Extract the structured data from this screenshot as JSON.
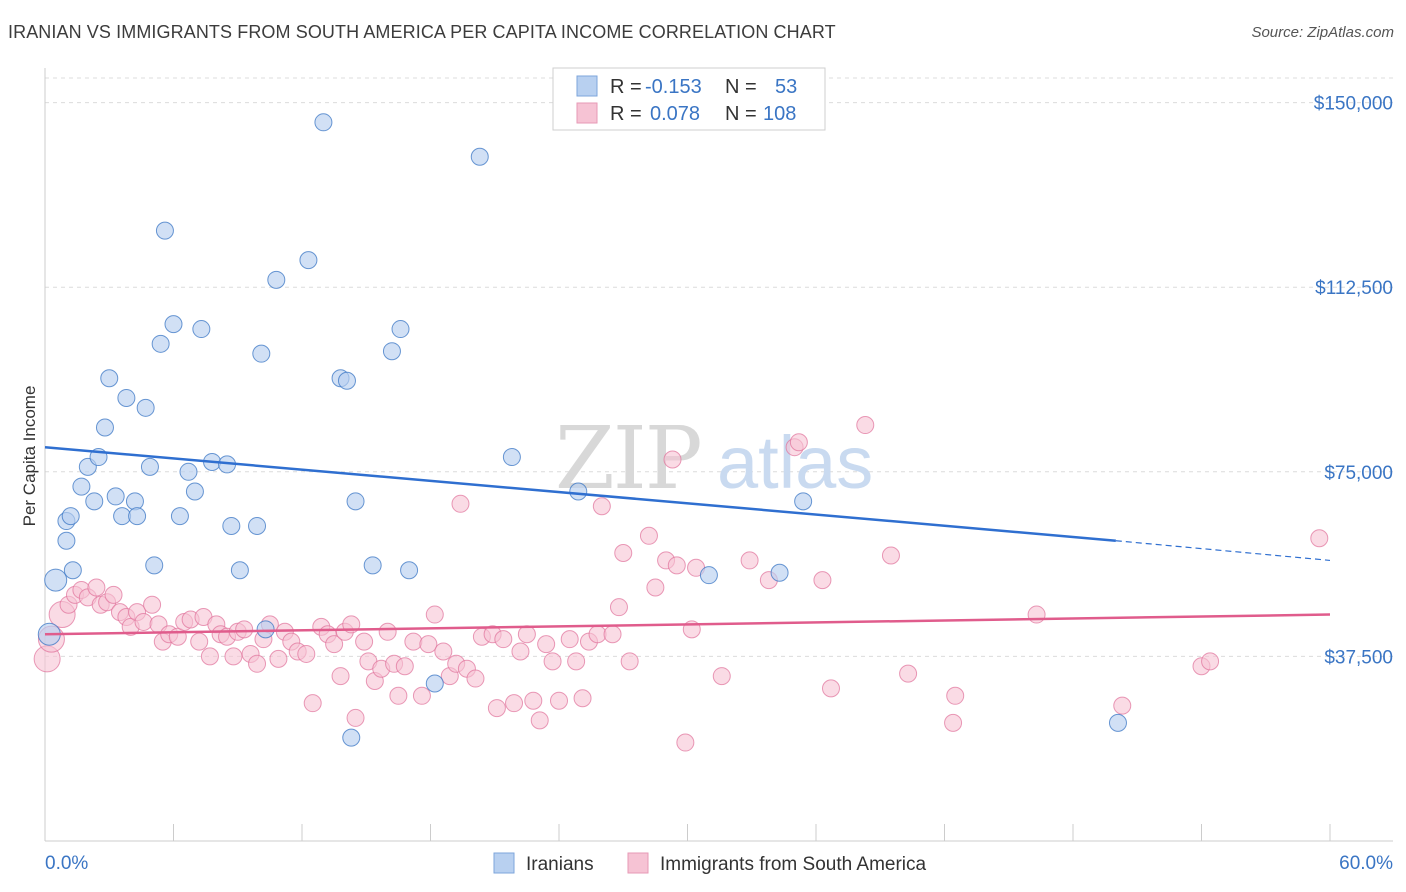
{
  "title": "IRANIAN VS IMMIGRANTS FROM SOUTH AMERICA PER CAPITA INCOME CORRELATION CHART",
  "source": "Source: ZipAtlas.com",
  "watermark": "ZIPatlas",
  "colors": {
    "blue": "#3a75c4",
    "blue_fill": "#b8d0f0",
    "blue_line": "#2f6fd0",
    "pink": "#e0709a",
    "pink_fill": "#f6c3d4",
    "pink_line": "#e05c8c"
  },
  "chart_data": {
    "type": "scatter",
    "title": "IRANIAN VS IMMIGRANTS FROM SOUTH AMERICA PER CAPITA INCOME CORRELATION CHART",
    "xlabel": "",
    "ylabel": "Per Capita Income",
    "xlim": [
      0,
      60
    ],
    "ylim": [
      0,
      155000
    ],
    "x_tick_labels": [
      "0.0%",
      "60.0%"
    ],
    "y_ticks": [
      37500,
      75000,
      112500,
      150000
    ],
    "y_tick_labels": [
      "$37,500",
      "$75,000",
      "$112,500",
      "$150,000"
    ],
    "legend": [
      {
        "name": "Iranians",
        "r_label": "R =",
        "r": "-0.153",
        "n_label": "N =",
        "n": "53"
      },
      {
        "name": "Immigrants from South America",
        "r_label": "R =",
        "r": "0.078",
        "n_label": "N =",
        "n": "108"
      }
    ],
    "series": [
      {
        "name": "Iranians",
        "trend": {
          "x0": 0,
          "y0": 80000,
          "x1": 50,
          "y1": 61000,
          "dash_to": 60,
          "dash_y": 57000
        },
        "points": [
          [
            0.2,
            42000
          ],
          [
            0.5,
            53000
          ],
          [
            1.0,
            61000
          ],
          [
            1.0,
            65000
          ],
          [
            1.2,
            66000
          ],
          [
            1.3,
            55000
          ],
          [
            1.7,
            72000
          ],
          [
            2.0,
            76000
          ],
          [
            2.3,
            69000
          ],
          [
            2.5,
            78000
          ],
          [
            2.8,
            84000
          ],
          [
            3.0,
            94000
          ],
          [
            3.3,
            70000
          ],
          [
            3.6,
            66000
          ],
          [
            3.8,
            90000
          ],
          [
            4.2,
            69000
          ],
          [
            4.3,
            66000
          ],
          [
            4.7,
            88000
          ],
          [
            4.9,
            76000
          ],
          [
            5.1,
            56000
          ],
          [
            5.4,
            101000
          ],
          [
            5.6,
            124000
          ],
          [
            6.0,
            105000
          ],
          [
            6.3,
            66000
          ],
          [
            6.7,
            75000
          ],
          [
            7.0,
            71000
          ],
          [
            7.3,
            104000
          ],
          [
            7.8,
            77000
          ],
          [
            8.5,
            76500
          ],
          [
            8.7,
            64000
          ],
          [
            9.1,
            55000
          ],
          [
            9.9,
            64000
          ],
          [
            10.1,
            99000
          ],
          [
            10.3,
            43000
          ],
          [
            10.8,
            114000
          ],
          [
            12.3,
            118000
          ],
          [
            13.0,
            146000
          ],
          [
            13.8,
            94000
          ],
          [
            14.1,
            93500
          ],
          [
            14.3,
            21000
          ],
          [
            14.5,
            69000
          ],
          [
            15.3,
            56000
          ],
          [
            16.2,
            99500
          ],
          [
            16.6,
            104000
          ],
          [
            17.0,
            55000
          ],
          [
            18.2,
            32000
          ],
          [
            20.3,
            139000
          ],
          [
            21.8,
            78000
          ],
          [
            24.9,
            71000
          ],
          [
            31.0,
            54000
          ],
          [
            34.3,
            54500
          ],
          [
            35.4,
            69000
          ],
          [
            50.1,
            24000
          ]
        ]
      },
      {
        "name": "Immigrants from South America",
        "trend": {
          "x0": 0,
          "y0": 42000,
          "x1": 60,
          "y1": 46000
        },
        "points": [
          [
            0.1,
            37000
          ],
          [
            0.3,
            41000
          ],
          [
            0.8,
            46000
          ],
          [
            1.1,
            48000
          ],
          [
            1.4,
            50000
          ],
          [
            1.7,
            51000
          ],
          [
            2.0,
            49500
          ],
          [
            2.4,
            51500
          ],
          [
            2.6,
            48000
          ],
          [
            2.9,
            48500
          ],
          [
            3.2,
            50000
          ],
          [
            3.5,
            46500
          ],
          [
            3.8,
            45500
          ],
          [
            4.0,
            43500
          ],
          [
            4.3,
            46500
          ],
          [
            4.6,
            44500
          ],
          [
            5.0,
            48000
          ],
          [
            5.3,
            44000
          ],
          [
            5.5,
            40500
          ],
          [
            5.8,
            42000
          ],
          [
            6.2,
            41500
          ],
          [
            6.5,
            44500
          ],
          [
            6.8,
            45000
          ],
          [
            7.2,
            40500
          ],
          [
            7.4,
            45500
          ],
          [
            7.7,
            37500
          ],
          [
            8.0,
            44000
          ],
          [
            8.2,
            42000
          ],
          [
            8.5,
            41500
          ],
          [
            8.8,
            37500
          ],
          [
            9.0,
            42500
          ],
          [
            9.3,
            43000
          ],
          [
            9.6,
            38000
          ],
          [
            9.9,
            36000
          ],
          [
            10.2,
            41000
          ],
          [
            10.5,
            44000
          ],
          [
            10.9,
            37000
          ],
          [
            11.2,
            42500
          ],
          [
            11.5,
            40500
          ],
          [
            11.8,
            38500
          ],
          [
            12.2,
            38000
          ],
          [
            12.5,
            28000
          ],
          [
            12.9,
            43500
          ],
          [
            13.2,
            42000
          ],
          [
            13.5,
            40000
          ],
          [
            13.8,
            33500
          ],
          [
            14.0,
            42500
          ],
          [
            14.3,
            44000
          ],
          [
            14.5,
            25000
          ],
          [
            14.9,
            40500
          ],
          [
            15.1,
            36500
          ],
          [
            15.4,
            32500
          ],
          [
            15.7,
            35000
          ],
          [
            16.0,
            42500
          ],
          [
            16.3,
            36000
          ],
          [
            16.5,
            29500
          ],
          [
            16.8,
            35500
          ],
          [
            17.2,
            40500
          ],
          [
            17.6,
            29500
          ],
          [
            17.9,
            40000
          ],
          [
            18.2,
            46000
          ],
          [
            18.6,
            38500
          ],
          [
            18.9,
            33500
          ],
          [
            19.2,
            36000
          ],
          [
            19.4,
            68500
          ],
          [
            19.7,
            35000
          ],
          [
            20.1,
            33000
          ],
          [
            20.4,
            41500
          ],
          [
            20.9,
            42000
          ],
          [
            21.1,
            27000
          ],
          [
            21.4,
            41000
          ],
          [
            21.9,
            28000
          ],
          [
            22.2,
            38500
          ],
          [
            22.5,
            42000
          ],
          [
            22.8,
            28500
          ],
          [
            23.1,
            24500
          ],
          [
            23.4,
            40000
          ],
          [
            23.7,
            36500
          ],
          [
            24.0,
            28500
          ],
          [
            24.5,
            41000
          ],
          [
            24.8,
            36500
          ],
          [
            25.1,
            29000
          ],
          [
            25.4,
            40500
          ],
          [
            25.8,
            42000
          ],
          [
            26.0,
            68000
          ],
          [
            26.5,
            42000
          ],
          [
            26.8,
            47500
          ],
          [
            27.0,
            58500
          ],
          [
            27.3,
            36500
          ],
          [
            28.2,
            62000
          ],
          [
            28.5,
            51500
          ],
          [
            29.0,
            57000
          ],
          [
            29.3,
            77500
          ],
          [
            29.5,
            56000
          ],
          [
            29.9,
            20000
          ],
          [
            30.2,
            43000
          ],
          [
            30.4,
            55500
          ],
          [
            31.6,
            33500
          ],
          [
            32.9,
            57000
          ],
          [
            33.8,
            53000
          ],
          [
            35.0,
            80000
          ],
          [
            35.2,
            81000
          ],
          [
            36.3,
            53000
          ],
          [
            36.7,
            31000
          ],
          [
            38.3,
            84500
          ],
          [
            39.5,
            58000
          ],
          [
            40.3,
            34000
          ],
          [
            42.4,
            24000
          ],
          [
            42.5,
            29500
          ],
          [
            46.3,
            46000
          ],
          [
            50.3,
            27500
          ],
          [
            54.0,
            35500
          ],
          [
            54.4,
            36500
          ],
          [
            59.5,
            61500
          ]
        ]
      }
    ]
  },
  "bottom_legend": [
    "Iranians",
    "Immigrants from South America"
  ]
}
